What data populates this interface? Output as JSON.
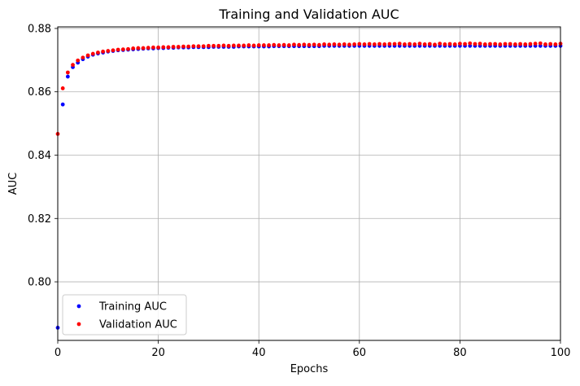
{
  "chart_data": {
    "type": "scatter",
    "title": "Training and Validation AUC",
    "xlabel": "Epochs",
    "ylabel": "AUC",
    "xlim": [
      0,
      100
    ],
    "ylim": [
      0.7815,
      0.8805
    ],
    "xticks": [
      0,
      20,
      40,
      60,
      80,
      100
    ],
    "xtick_labels": [
      "0",
      "20",
      "40",
      "60",
      "80",
      "100"
    ],
    "yticks": [
      0.8,
      0.82,
      0.84,
      0.86,
      0.88
    ],
    "ytick_labels": [
      "0.80",
      "0.82",
      "0.84",
      "0.86",
      "0.88"
    ],
    "grid": true,
    "legend": {
      "position": "lower-left",
      "entries": [
        "Training AUC",
        "Validation AUC"
      ]
    },
    "series": [
      {
        "name": "Training AUC",
        "color": "#0000ff",
        "marker": "dot",
        "x": [
          0,
          1,
          2,
          3,
          4,
          5,
          6,
          7,
          8,
          9,
          10,
          11,
          12,
          13,
          14,
          15,
          16,
          17,
          18,
          19,
          20,
          21,
          22,
          23,
          24,
          25,
          26,
          27,
          28,
          29,
          30,
          31,
          32,
          33,
          34,
          35,
          36,
          37,
          38,
          39,
          40,
          41,
          42,
          43,
          44,
          45,
          46,
          47,
          48,
          49,
          50,
          51,
          52,
          53,
          54,
          55,
          56,
          57,
          58,
          59,
          60,
          61,
          62,
          63,
          64,
          65,
          66,
          67,
          68,
          69,
          70,
          71,
          72,
          73,
          74,
          75,
          76,
          77,
          78,
          79,
          80,
          81,
          82,
          83,
          84,
          85,
          86,
          87,
          88,
          89,
          90,
          91,
          92,
          93,
          94,
          95,
          96,
          97,
          98,
          99,
          100
        ],
        "y": [
          0.7855,
          0.856,
          0.8648,
          0.8678,
          0.8692,
          0.8703,
          0.8711,
          0.8717,
          0.8721,
          0.8724,
          0.8727,
          0.8729,
          0.8731,
          0.8732,
          0.8733,
          0.8734,
          0.8735,
          0.8736,
          0.8737,
          0.8737,
          0.8738,
          0.8738,
          0.8739,
          0.8739,
          0.874,
          0.874,
          0.874,
          0.8741,
          0.8741,
          0.8741,
          0.8741,
          0.8742,
          0.8742,
          0.8742,
          0.8742,
          0.8742,
          0.8743,
          0.8743,
          0.8743,
          0.8743,
          0.8743,
          0.8743,
          0.8743,
          0.8744,
          0.8744,
          0.8744,
          0.8744,
          0.8744,
          0.8744,
          0.8744,
          0.8744,
          0.8744,
          0.8744,
          0.8745,
          0.8745,
          0.8745,
          0.8745,
          0.8745,
          0.8745,
          0.8745,
          0.8745,
          0.8745,
          0.8745,
          0.8745,
          0.8745,
          0.8745,
          0.8745,
          0.8745,
          0.8745,
          0.8745,
          0.8745,
          0.8745,
          0.8745,
          0.8745,
          0.8745,
          0.8745,
          0.8745,
          0.8745,
          0.8745,
          0.8745,
          0.8745,
          0.8745,
          0.8745,
          0.8745,
          0.8745,
          0.8745,
          0.8745,
          0.8745,
          0.8745,
          0.8745,
          0.8745,
          0.8745,
          0.8745,
          0.8745,
          0.8745,
          0.8745,
          0.8745,
          0.8745,
          0.8745,
          0.8745,
          0.8745
        ]
      },
      {
        "name": "Validation AUC",
        "color": "#ff0000",
        "marker": "dot",
        "x": [
          0,
          1,
          2,
          3,
          4,
          5,
          6,
          7,
          8,
          9,
          10,
          11,
          12,
          13,
          14,
          15,
          16,
          17,
          18,
          19,
          20,
          21,
          22,
          23,
          24,
          25,
          26,
          27,
          28,
          29,
          30,
          31,
          32,
          33,
          34,
          35,
          36,
          37,
          38,
          39,
          40,
          41,
          42,
          43,
          44,
          45,
          46,
          47,
          48,
          49,
          50,
          51,
          52,
          53,
          54,
          55,
          56,
          57,
          58,
          59,
          60,
          61,
          62,
          63,
          64,
          65,
          66,
          67,
          68,
          69,
          70,
          71,
          72,
          73,
          74,
          75,
          76,
          77,
          78,
          79,
          80,
          81,
          82,
          83,
          84,
          85,
          86,
          87,
          88,
          89,
          90,
          91,
          92,
          93,
          94,
          95,
          96,
          97,
          98,
          99,
          100
        ],
        "y": [
          0.8467,
          0.8611,
          0.8661,
          0.8685,
          0.8699,
          0.8708,
          0.8715,
          0.872,
          0.8724,
          0.8727,
          0.8729,
          0.8731,
          0.8733,
          0.8734,
          0.8735,
          0.8737,
          0.8738,
          0.8738,
          0.8739,
          0.874,
          0.874,
          0.8741,
          0.8741,
          0.8742,
          0.8742,
          0.8743,
          0.8743,
          0.8744,
          0.8744,
          0.8744,
          0.8745,
          0.8745,
          0.8745,
          0.8746,
          0.8745,
          0.8746,
          0.8746,
          0.8746,
          0.8747,
          0.8746,
          0.8747,
          0.8747,
          0.8747,
          0.8748,
          0.8747,
          0.8748,
          0.8747,
          0.8749,
          0.8748,
          0.8749,
          0.8748,
          0.8749,
          0.8748,
          0.875,
          0.8749,
          0.875,
          0.8749,
          0.875,
          0.8749,
          0.875,
          0.8751,
          0.875,
          0.8751,
          0.875,
          0.8751,
          0.875,
          0.8751,
          0.8751,
          0.8752,
          0.875,
          0.8751,
          0.875,
          0.8752,
          0.875,
          0.8751,
          0.8749,
          0.8752,
          0.875,
          0.8751,
          0.875,
          0.8752,
          0.8751,
          0.8753,
          0.8751,
          0.8752,
          0.875,
          0.8751,
          0.8751,
          0.875,
          0.8751,
          0.8751,
          0.875,
          0.8751,
          0.875,
          0.8751,
          0.8752,
          0.8753,
          0.875,
          0.8751,
          0.875,
          0.8752
        ]
      }
    ]
  }
}
